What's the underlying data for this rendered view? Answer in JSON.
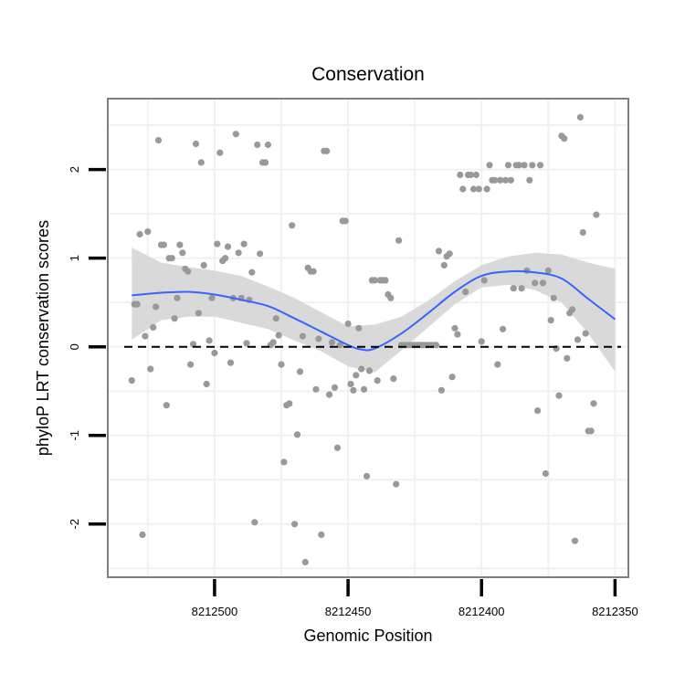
{
  "chart_data": {
    "type": "scatter",
    "title": "Conservation",
    "xlabel": "Genomic Position",
    "ylabel": "phyloP LRT conservation scores",
    "xlim": [
      8212540,
      8212345
    ],
    "ylim": [
      -2.6,
      2.8
    ],
    "x_reversed": true,
    "x_ticks": [
      8212500,
      8212450,
      8212400,
      8212350
    ],
    "x_tick_labels": [
      "8212500",
      "8212450",
      "8212400",
      "8212350"
    ],
    "y_ticks": [
      -2,
      -1,
      0,
      1,
      2
    ],
    "y_tick_labels": [
      "-2",
      "-1",
      "0",
      "1",
      "2"
    ],
    "grid": true,
    "reference_line": {
      "y": 0,
      "style": "dashed",
      "color": "#000000"
    },
    "colors": {
      "points": "#999999",
      "smooth_line": "#3366ff",
      "confidence_band": "#d9d9d9",
      "panel_border": "#7f7f7f",
      "grid": "#f0f0f0"
    },
    "series": [
      {
        "name": "scores",
        "type": "scatter",
        "points": [
          [
            8212531,
            -0.38
          ],
          [
            8212530,
            0.48
          ],
          [
            8212529,
            0.48
          ],
          [
            8212528,
            1.27
          ],
          [
            8212527,
            -2.12
          ],
          [
            8212526,
            0.12
          ],
          [
            8212525,
            1.3
          ],
          [
            8212524,
            -0.25
          ],
          [
            8212523,
            0.22
          ],
          [
            8212522,
            0.45
          ],
          [
            8212521,
            2.33
          ],
          [
            8212520,
            1.15
          ],
          [
            8212519,
            1.15
          ],
          [
            8212518,
            -0.66
          ],
          [
            8212517,
            1.0
          ],
          [
            8212516,
            1.0
          ],
          [
            8212515,
            0.32
          ],
          [
            8212514,
            0.55
          ],
          [
            8212513,
            1.15
          ],
          [
            8212512,
            1.06
          ],
          [
            8212511,
            0.88
          ],
          [
            8212510,
            0.85
          ],
          [
            8212509,
            -0.2
          ],
          [
            8212508,
            0.03
          ],
          [
            8212507,
            2.29
          ],
          [
            8212506,
            0.38
          ],
          [
            8212505,
            2.08
          ],
          [
            8212504,
            0.92
          ],
          [
            8212503,
            -0.42
          ],
          [
            8212502,
            0.07
          ],
          [
            8212501,
            0.55
          ],
          [
            8212500,
            -0.07
          ],
          [
            8212499,
            1.16
          ],
          [
            8212498,
            2.19
          ],
          [
            8212497,
            0.97
          ],
          [
            8212496,
            1.0
          ],
          [
            8212495,
            1.13
          ],
          [
            8212494,
            -0.18
          ],
          [
            8212493,
            0.55
          ],
          [
            8212492,
            2.4
          ],
          [
            8212491,
            1.06
          ],
          [
            8212490,
            0.55
          ],
          [
            8212489,
            1.16
          ],
          [
            8212488,
            0.04
          ],
          [
            8212487,
            0.53
          ],
          [
            8212486,
            0.84
          ],
          [
            8212485,
            -1.98
          ],
          [
            8212484,
            2.28
          ],
          [
            8212483,
            1.05
          ],
          [
            8212482,
            2.08
          ],
          [
            8212481,
            2.08
          ],
          [
            8212480,
            2.28
          ],
          [
            8212479,
            0.02
          ],
          [
            8212478,
            0.05
          ],
          [
            8212477,
            0.32
          ],
          [
            8212476,
            0.13
          ],
          [
            8212475,
            -0.2
          ],
          [
            8212474,
            -1.3
          ],
          [
            8212473,
            -0.66
          ],
          [
            8212472,
            -0.64
          ],
          [
            8212471,
            1.37
          ],
          [
            8212470,
            -2.0
          ],
          [
            8212469,
            -0.99
          ],
          [
            8212468,
            -0.28
          ],
          [
            8212467,
            0.12
          ],
          [
            8212466,
            -2.43
          ],
          [
            8212465,
            0.89
          ],
          [
            8212464,
            0.85
          ],
          [
            8212463,
            0.85
          ],
          [
            8212462,
            -0.48
          ],
          [
            8212461,
            0.09
          ],
          [
            8212460,
            -2.12
          ],
          [
            8212459,
            2.21
          ],
          [
            8212458,
            2.21
          ],
          [
            8212457,
            -0.54
          ],
          [
            8212456,
            0.05
          ],
          [
            8212455,
            -0.46
          ],
          [
            8212454,
            -1.14
          ],
          [
            8212453,
            0.02
          ],
          [
            8212452,
            1.42
          ],
          [
            8212451,
            1.42
          ],
          [
            8212450,
            0.26
          ],
          [
            8212449,
            -0.42
          ],
          [
            8212448,
            -0.49
          ],
          [
            8212447,
            -0.32
          ],
          [
            8212446,
            0.21
          ],
          [
            8212445,
            -0.25
          ],
          [
            8212444,
            -0.48
          ],
          [
            8212443,
            -1.46
          ],
          [
            8212442,
            -0.27
          ],
          [
            8212441,
            0.75
          ],
          [
            8212440,
            0.75
          ],
          [
            8212439,
            -0.38
          ],
          [
            8212438,
            0.75
          ],
          [
            8212437,
            0.75
          ],
          [
            8212436,
            0.75
          ],
          [
            8212435,
            0.59
          ],
          [
            8212434,
            0.55
          ],
          [
            8212433,
            -0.36
          ],
          [
            8212432,
            -1.55
          ],
          [
            8212431,
            1.2
          ],
          [
            8212430,
            0.02
          ],
          [
            8212429,
            0.02
          ],
          [
            8212428,
            0.02
          ],
          [
            8212427,
            0.02
          ],
          [
            8212426,
            0.02
          ],
          [
            8212425,
            0.02
          ],
          [
            8212424,
            0.02
          ],
          [
            8212423,
            0.02
          ],
          [
            8212422,
            0.02
          ],
          [
            8212421,
            0.02
          ],
          [
            8212420,
            0.02
          ],
          [
            8212419,
            0.02
          ],
          [
            8212418,
            0.02
          ],
          [
            8212417,
            0.02
          ],
          [
            8212416,
            1.08
          ],
          [
            8212415,
            -0.49
          ],
          [
            8212414,
            0.92
          ],
          [
            8212413,
            1.02
          ],
          [
            8212412,
            1.05
          ],
          [
            8212411,
            -0.34
          ],
          [
            8212410,
            0.21
          ],
          [
            8212409,
            0.14
          ],
          [
            8212408,
            1.94
          ],
          [
            8212407,
            1.78
          ],
          [
            8212406,
            0.62
          ],
          [
            8212405,
            1.94
          ],
          [
            8212404,
            1.94
          ],
          [
            8212403,
            1.78
          ],
          [
            8212402,
            1.94
          ],
          [
            8212401,
            1.78
          ],
          [
            8212400,
            0.06
          ],
          [
            8212399,
            0.75
          ],
          [
            8212398,
            1.78
          ],
          [
            8212397,
            2.05
          ],
          [
            8212396,
            1.88
          ],
          [
            8212395,
            1.88
          ],
          [
            8212394,
            -0.2
          ],
          [
            8212393,
            1.88
          ],
          [
            8212392,
            0.2
          ],
          [
            8212391,
            1.88
          ],
          [
            8212390,
            2.05
          ],
          [
            8212389,
            1.88
          ],
          [
            8212388,
            0.66
          ],
          [
            8212387,
            2.05
          ],
          [
            8212386,
            2.05
          ],
          [
            8212385,
            0.66
          ],
          [
            8212384,
            2.05
          ],
          [
            8212383,
            0.86
          ],
          [
            8212382,
            1.88
          ],
          [
            8212381,
            2.05
          ],
          [
            8212380,
            0.72
          ],
          [
            8212379,
            -0.72
          ],
          [
            8212378,
            2.05
          ],
          [
            8212377,
            0.72
          ],
          [
            8212376,
            -1.43
          ],
          [
            8212375,
            0.86
          ],
          [
            8212374,
            0.3
          ],
          [
            8212373,
            0.55
          ],
          [
            8212372,
            -0.02
          ],
          [
            8212371,
            -0.55
          ],
          [
            8212370,
            2.38
          ],
          [
            8212369,
            2.35
          ],
          [
            8212368,
            -0.13
          ],
          [
            8212367,
            0.38
          ],
          [
            8212366,
            0.42
          ],
          [
            8212365,
            -2.19
          ],
          [
            8212364,
            0.08
          ],
          [
            8212363,
            2.59
          ],
          [
            8212362,
            1.29
          ],
          [
            8212361,
            0.15
          ],
          [
            8212360,
            -0.95
          ],
          [
            8212359,
            -0.95
          ],
          [
            8212358,
            -0.64
          ],
          [
            8212357,
            1.49
          ]
        ]
      },
      {
        "name": "smooth",
        "type": "line",
        "points": [
          [
            8212531,
            0.58
          ],
          [
            8212520,
            0.61
          ],
          [
            8212510,
            0.62
          ],
          [
            8212500,
            0.59
          ],
          [
            8212490,
            0.53
          ],
          [
            8212480,
            0.46
          ],
          [
            8212470,
            0.32
          ],
          [
            8212460,
            0.17
          ],
          [
            8212450,
            0.02
          ],
          [
            8212445,
            -0.03
          ],
          [
            8212440,
            -0.02
          ],
          [
            8212430,
            0.15
          ],
          [
            8212420,
            0.38
          ],
          [
            8212410,
            0.62
          ],
          [
            8212400,
            0.8
          ],
          [
            8212390,
            0.85
          ],
          [
            8212380,
            0.84
          ],
          [
            8212370,
            0.77
          ],
          [
            8212360,
            0.54
          ],
          [
            8212350,
            0.31
          ]
        ]
      },
      {
        "name": "confidence-band",
        "type": "area",
        "upper": [
          [
            8212531,
            1.12
          ],
          [
            8212520,
            0.95
          ],
          [
            8212510,
            0.9
          ],
          [
            8212500,
            0.86
          ],
          [
            8212490,
            0.8
          ],
          [
            8212480,
            0.68
          ],
          [
            8212470,
            0.55
          ],
          [
            8212460,
            0.39
          ],
          [
            8212450,
            0.23
          ],
          [
            8212440,
            0.25
          ],
          [
            8212430,
            0.34
          ],
          [
            8212420,
            0.52
          ],
          [
            8212410,
            0.74
          ],
          [
            8212400,
            0.92
          ],
          [
            8212390,
            1.02
          ],
          [
            8212380,
            1.06
          ],
          [
            8212370,
            1.04
          ],
          [
            8212360,
            0.95
          ],
          [
            8212350,
            0.88
          ]
        ],
        "lower": [
          [
            8212531,
            0.08
          ],
          [
            8212520,
            0.3
          ],
          [
            8212510,
            0.34
          ],
          [
            8212500,
            0.34
          ],
          [
            8212490,
            0.27
          ],
          [
            8212480,
            0.2
          ],
          [
            8212470,
            0.07
          ],
          [
            8212460,
            -0.05
          ],
          [
            8212450,
            -0.22
          ],
          [
            8212440,
            -0.29
          ],
          [
            8212430,
            -0.04
          ],
          [
            8212420,
            0.22
          ],
          [
            8212410,
            0.48
          ],
          [
            8212400,
            0.67
          ],
          [
            8212390,
            0.7
          ],
          [
            8212380,
            0.64
          ],
          [
            8212370,
            0.5
          ],
          [
            8212360,
            0.15
          ],
          [
            8212350,
            -0.28
          ]
        ]
      }
    ]
  }
}
